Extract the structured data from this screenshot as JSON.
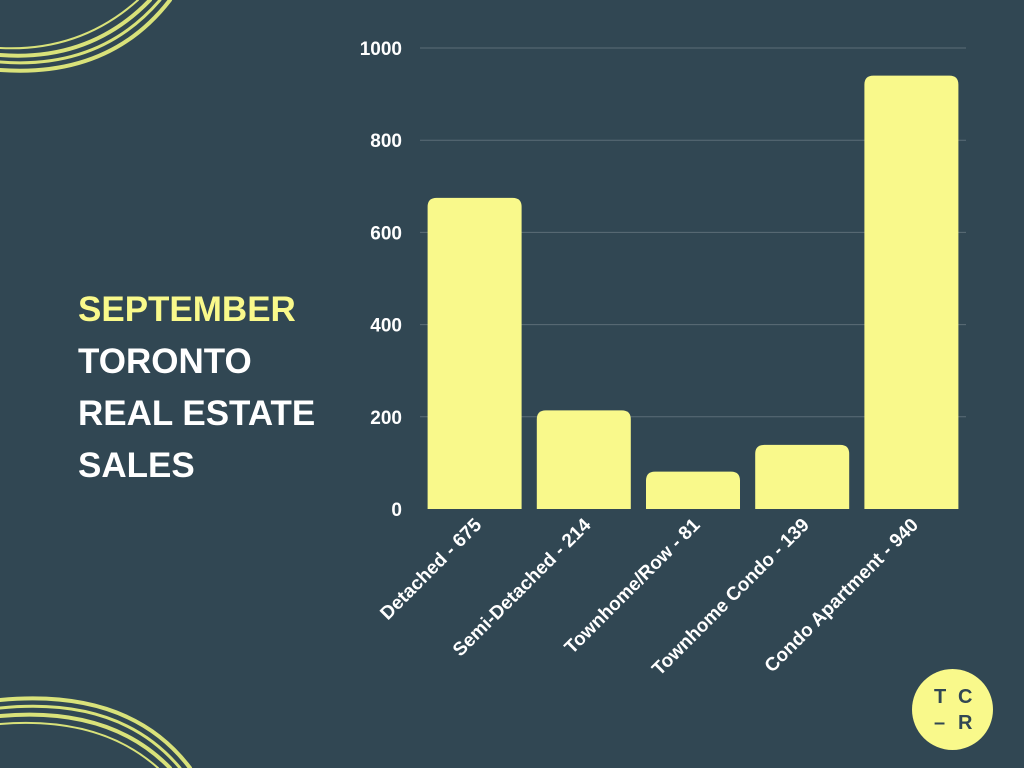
{
  "title": {
    "line1": "SEPTEMBER",
    "line2": "TORONTO",
    "line3": "REAL ESTATE",
    "line4": "SALES"
  },
  "logo": {
    "l1": "T",
    "l2": "C",
    "l3": "–",
    "l4": "R"
  },
  "colors": {
    "background": "#314753",
    "accent": "#f9f98b",
    "text": "#ffffff",
    "grid": "#5b6d77"
  },
  "chart_data": {
    "type": "bar",
    "categories": [
      "Detached - 675",
      "Semi-Detached - 214",
      "Townhome/Row - 81",
      "Townhome Condo - 139",
      "Condo Apartment - 940"
    ],
    "values": [
      675,
      214,
      81,
      139,
      940
    ],
    "yticks": [
      0,
      200,
      400,
      600,
      800,
      1000
    ],
    "ylim": [
      0,
      1000
    ],
    "grid": true,
    "legend": "none"
  }
}
